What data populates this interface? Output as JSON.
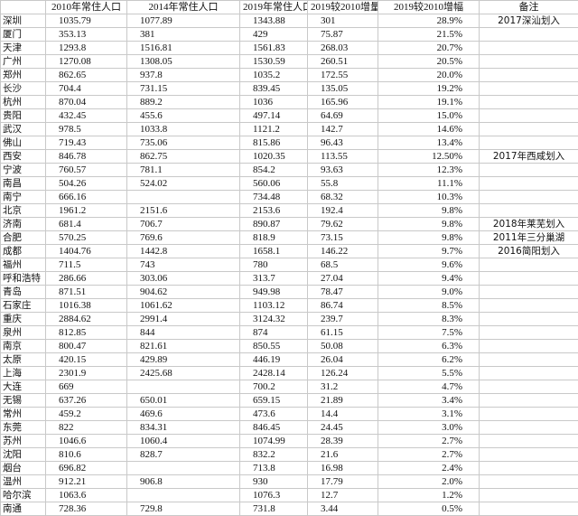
{
  "headers": [
    "",
    "2010年常住人口",
    "2014年常住人口",
    "2019年常住人口",
    "2019较2010增量",
    "2019较2010增幅",
    "备注"
  ],
  "rows": [
    [
      "深圳",
      "1035.79",
      "1077.89",
      "1343.88",
      "301",
      "28.9%",
      "2017深汕划入"
    ],
    [
      "厦门",
      "353.13",
      "381",
      "429",
      "75.87",
      "21.5%",
      ""
    ],
    [
      "天津",
      "1293.8",
      "1516.81",
      "1561.83",
      "268.03",
      "20.7%",
      ""
    ],
    [
      "广州",
      "1270.08",
      "1308.05",
      "1530.59",
      "260.51",
      "20.5%",
      ""
    ],
    [
      "郑州",
      "862.65",
      "937.8",
      "1035.2",
      "172.55",
      "20.0%",
      ""
    ],
    [
      "长沙",
      "704.4",
      "731.15",
      "839.45",
      "135.05",
      "19.2%",
      ""
    ],
    [
      "杭州",
      "870.04",
      "889.2",
      "1036",
      "165.96",
      "19.1%",
      ""
    ],
    [
      "贵阳",
      "432.45",
      "455.6",
      "497.14",
      "64.69",
      "15.0%",
      ""
    ],
    [
      "武汉",
      "978.5",
      "1033.8",
      "1121.2",
      "142.7",
      "14.6%",
      ""
    ],
    [
      "佛山",
      "719.43",
      "735.06",
      "815.86",
      "96.43",
      "13.4%",
      ""
    ],
    [
      "西安",
      "846.78",
      "862.75",
      "1020.35",
      "113.55",
      "12.50%",
      "2017年西咸划入"
    ],
    [
      "宁波",
      "760.57",
      "781.1",
      "854.2",
      "93.63",
      "12.3%",
      ""
    ],
    [
      "南昌",
      "504.26",
      "524.02",
      "560.06",
      "55.8",
      "11.1%",
      ""
    ],
    [
      "南宁",
      "666.16",
      "",
      "734.48",
      "68.32",
      "10.3%",
      ""
    ],
    [
      "北京",
      "1961.2",
      "2151.6",
      "2153.6",
      "192.4",
      "9.8%",
      ""
    ],
    [
      "济南",
      "681.4",
      "706.7",
      "890.87",
      "79.62",
      "9.8%",
      "2018年莱芜划入"
    ],
    [
      "合肥",
      "570.25",
      "769.6",
      "818.9",
      "73.15",
      "9.8%",
      "2011年三分巢湖"
    ],
    [
      "成都",
      "1404.76",
      "1442.8",
      "1658.1",
      "146.22",
      "9.7%",
      "2016简阳划入"
    ],
    [
      "福州",
      "711.5",
      "743",
      "780",
      "68.5",
      "9.6%",
      ""
    ],
    [
      "呼和浩特",
      "286.66",
      "303.06",
      "313.7",
      "27.04",
      "9.4%",
      ""
    ],
    [
      "青岛",
      "871.51",
      "904.62",
      "949.98",
      "78.47",
      "9.0%",
      ""
    ],
    [
      "石家庄",
      "1016.38",
      "1061.62",
      "1103.12",
      "86.74",
      "8.5%",
      ""
    ],
    [
      "重庆",
      "2884.62",
      "2991.4",
      "3124.32",
      "239.7",
      "8.3%",
      ""
    ],
    [
      "泉州",
      "812.85",
      "844",
      "874",
      "61.15",
      "7.5%",
      ""
    ],
    [
      "南京",
      "800.47",
      "821.61",
      "850.55",
      "50.08",
      "6.3%",
      ""
    ],
    [
      "太原",
      "420.15",
      "429.89",
      "446.19",
      "26.04",
      "6.2%",
      ""
    ],
    [
      "上海",
      "2301.9",
      "2425.68",
      "2428.14",
      "126.24",
      "5.5%",
      ""
    ],
    [
      "大连",
      "669",
      "",
      "700.2",
      "31.2",
      "4.7%",
      ""
    ],
    [
      "无锡",
      "637.26",
      "650.01",
      "659.15",
      "21.89",
      "3.4%",
      ""
    ],
    [
      "常州",
      "459.2",
      "469.6",
      "473.6",
      "14.4",
      "3.1%",
      ""
    ],
    [
      "东莞",
      "822",
      "834.31",
      "846.45",
      "24.45",
      "3.0%",
      ""
    ],
    [
      "苏州",
      "1046.6",
      "1060.4",
      "1074.99",
      "28.39",
      "2.7%",
      ""
    ],
    [
      "沈阳",
      "810.6",
      "828.7",
      "832.2",
      "21.6",
      "2.7%",
      ""
    ],
    [
      "烟台",
      "696.82",
      "",
      "713.8",
      "16.98",
      "2.4%",
      ""
    ],
    [
      "温州",
      "912.21",
      "906.8",
      "930",
      "17.79",
      "2.0%",
      ""
    ],
    [
      "哈尔滨",
      "1063.6",
      "",
      "1076.3",
      "12.7",
      "1.2%",
      ""
    ],
    [
      "南通",
      "728.36",
      "729.8",
      "731.8",
      "3.44",
      "0.5%",
      ""
    ]
  ]
}
